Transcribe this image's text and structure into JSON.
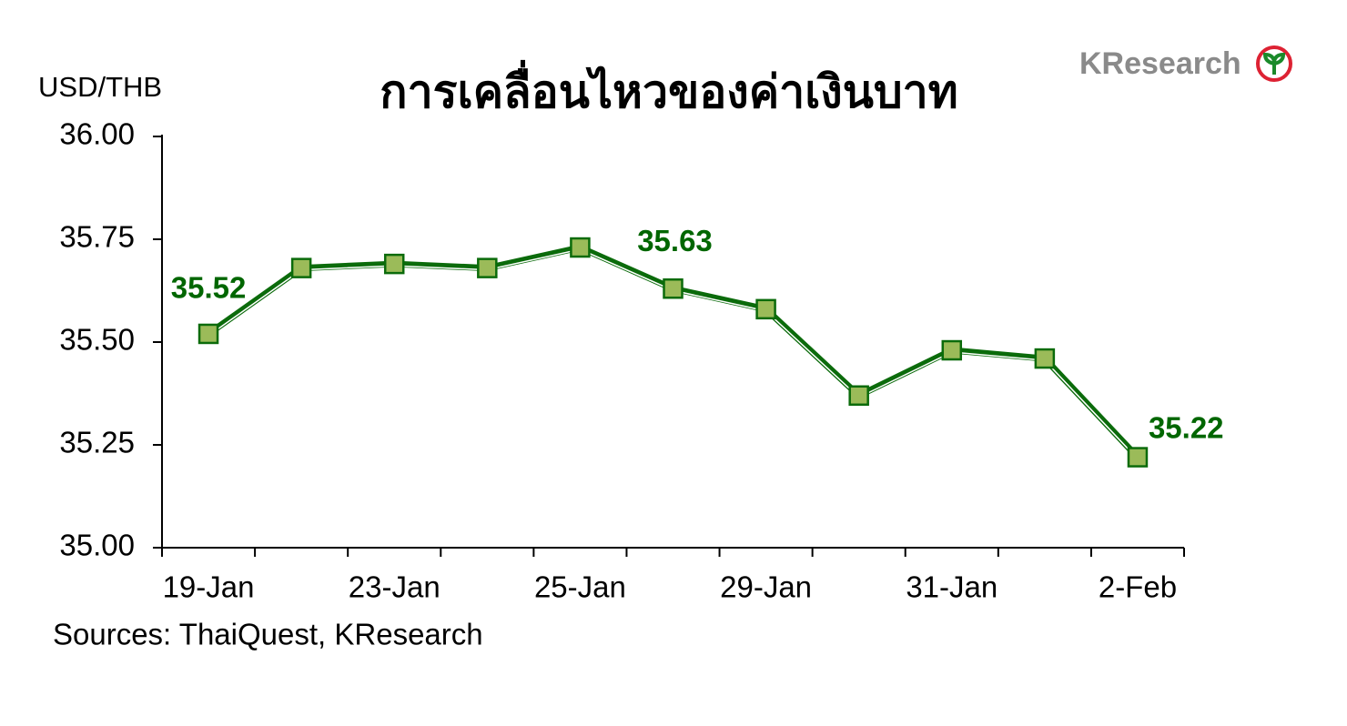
{
  "chart_data": {
    "type": "line",
    "title": "การเคลื่อนไหวของค่าเงินบาท",
    "y_label": "USD/THB",
    "source": "Sources: ThaiQuest, KResearch",
    "logo": "KResearch",
    "categories": [
      "19-Jan",
      null,
      "23-Jan",
      null,
      "25-Jan",
      null,
      "29-Jan",
      null,
      "31-Jan",
      null,
      "2-Feb"
    ],
    "series": [
      {
        "name": "USD/THB",
        "color": "#0b6b0b",
        "marker_color": "#9bbb59",
        "values": [
          35.52,
          35.68,
          35.69,
          35.68,
          35.73,
          35.63,
          35.58,
          35.37,
          35.48,
          35.46,
          35.22
        ],
        "value_labels": [
          "35.52",
          null,
          null,
          null,
          null,
          "35.63",
          null,
          null,
          null,
          null,
          "35.22"
        ]
      }
    ],
    "ylim": [
      35.0,
      36.0
    ],
    "yticks": [
      {
        "value": 35.0,
        "label": "35.00"
      },
      {
        "value": 35.25,
        "label": "35.25"
      },
      {
        "value": 35.5,
        "label": "35.50"
      },
      {
        "value": 35.75,
        "label": "35.75"
      },
      {
        "value": 36.0,
        "label": "36.00"
      }
    ]
  }
}
